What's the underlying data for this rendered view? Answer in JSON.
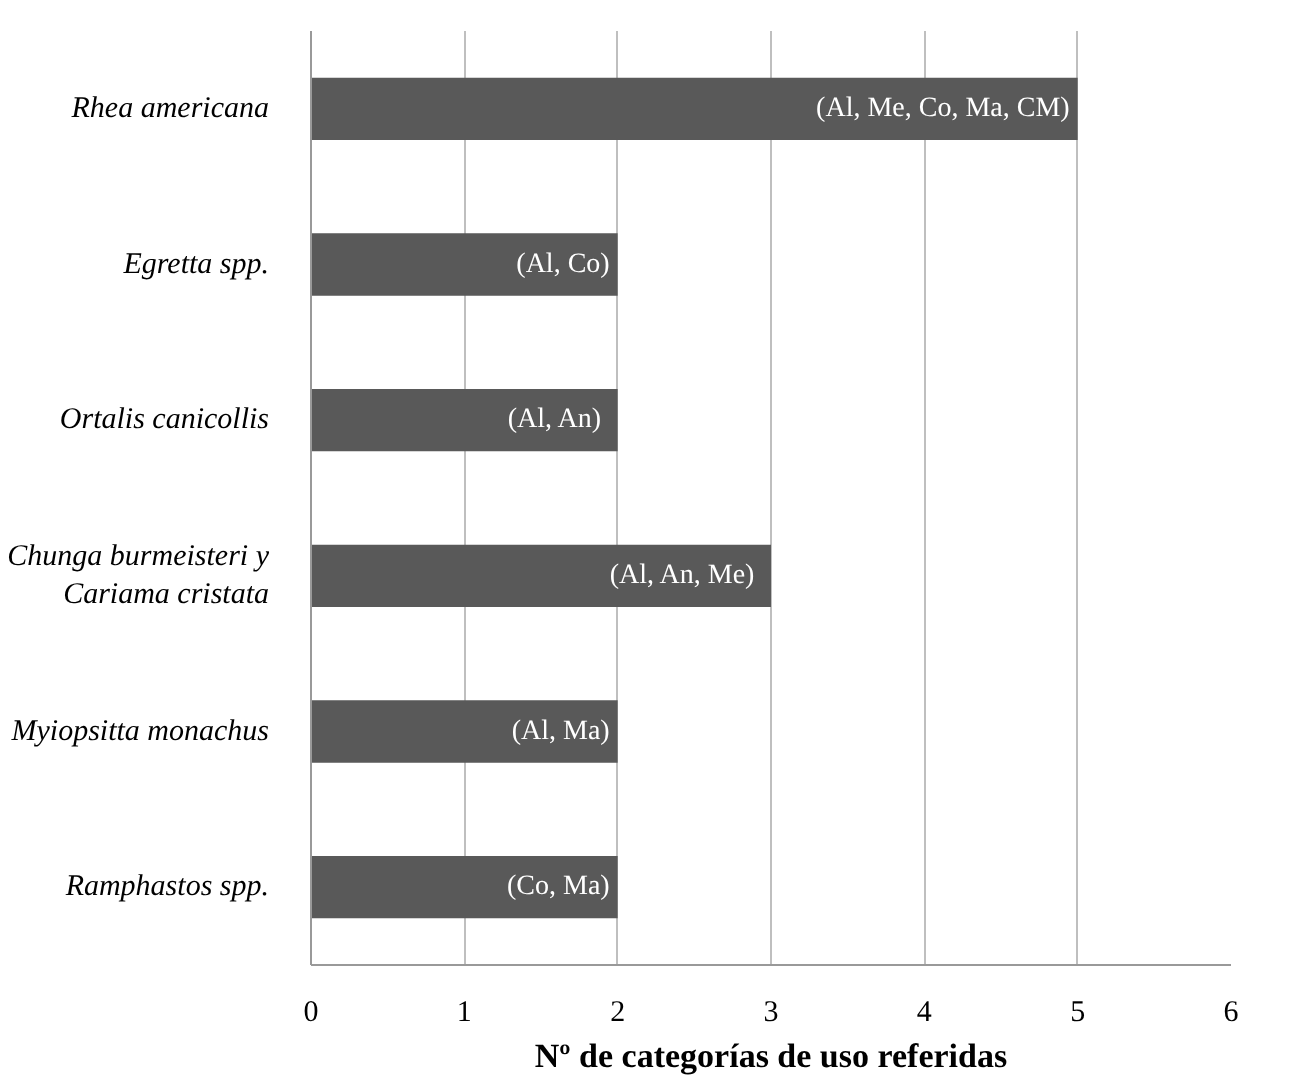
{
  "chart_data": {
    "type": "bar",
    "orientation": "horizontal",
    "categories": [
      "Rhea americana",
      "Egretta spp.",
      "Ortalis canicollis",
      "Chunga burmeisteri y\nCariama cristata",
      "Myiopsitta monachus",
      "Ramphastos spp."
    ],
    "values": [
      5,
      2,
      2,
      3,
      2,
      2
    ],
    "value_labels": [
      "(Al, Me, Co, Ma, CM)",
      "(Al, Co)",
      "(Al,  An)",
      "(Al,  An, Me)",
      "(Al, Ma)",
      "(Co, Ma)"
    ],
    "color": "#595959",
    "xlabel": "Nº de categorías de uso referidas",
    "xlim": [
      0,
      6
    ],
    "xticks": [
      0,
      1,
      2,
      3,
      4,
      5,
      6
    ],
    "grid": "x"
  }
}
